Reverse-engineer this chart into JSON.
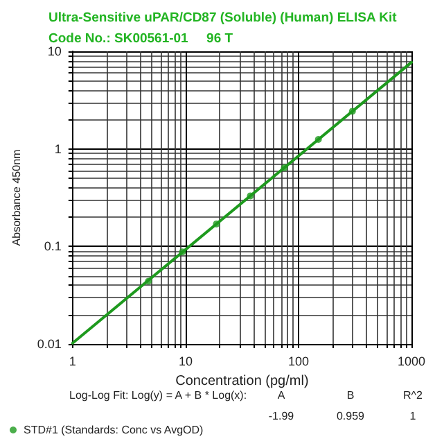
{
  "chart_data": {
    "type": "scatter",
    "title": "Ultra-Sensitive uPAR/CD87 (Soluble) (Human) ELISA Kit",
    "subtitle": "Code No.: SK00561-01     96 T",
    "xlabel": "Concentration (pg/ml)",
    "ylabel": "Absorbance 450nm",
    "log": "xy",
    "xlim": [
      1,
      1000
    ],
    "ylim": [
      0.01,
      10
    ],
    "xticks": [
      1,
      10,
      100,
      1000
    ],
    "yticks": [
      0.01,
      0.1,
      1,
      10
    ],
    "grid": true,
    "legend": "bottom left",
    "series": [
      {
        "type": "line",
        "x": [
          1,
          1000
        ],
        "values": [
          0.0102,
          7.71
        ],
        "color": "#1e9a1e"
      },
      {
        "name": "STD#1 (Standards: Conc vs AvgOD)",
        "marker": "circle",
        "x": [
          4.69,
          9.38,
          18.75,
          37.5,
          75,
          150,
          300
        ],
        "values": [
          0.044,
          0.088,
          0.17,
          0.33,
          0.64,
          1.25,
          2.43
        ],
        "color": "#1e9a1e"
      }
    ],
    "annotations": [
      "Log-Log Fit: Log(y) = A + B * Log(x):",
      "A",
      "B",
      "R^2",
      "-1.99",
      "0.959",
      "1"
    ]
  }
}
